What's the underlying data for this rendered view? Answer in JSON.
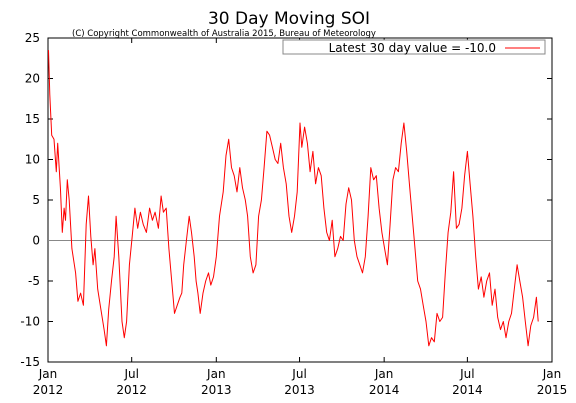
{
  "chart_data": {
    "type": "line",
    "title": "30 Day Moving SOI",
    "subtitle": "(C) Copyright Commonwealth of Australia 2015, Bureau of Meteorology",
    "xlabel": "",
    "ylabel": "",
    "ylim": [
      -15,
      25
    ],
    "yticks": [
      -15,
      -10,
      -5,
      0,
      5,
      10,
      15,
      20,
      25
    ],
    "xlim": [
      "2012-01-01",
      "2015-01-01"
    ],
    "xticks": [
      {
        "date": "2012-01-01",
        "label1": "Jan",
        "label2": "2012"
      },
      {
        "date": "2012-07-01",
        "label1": "Jul",
        "label2": "2012"
      },
      {
        "date": "2013-01-01",
        "label1": "Jan",
        "label2": "2013"
      },
      {
        "date": "2013-07-01",
        "label1": "Jul",
        "label2": "2013"
      },
      {
        "date": "2014-01-01",
        "label1": "Jan",
        "label2": "2014"
      },
      {
        "date": "2014-07-01",
        "label1": "Jul",
        "label2": "2014"
      },
      {
        "date": "2015-01-01",
        "label1": "Jan",
        "label2": "2015"
      }
    ],
    "zero_line": true,
    "legend": {
      "position": "top-right",
      "entries": [
        "Latest 30 day value = -10.0"
      ]
    },
    "series": [
      {
        "name": "Latest 30 day value = -10.0",
        "color": "#ff0000",
        "points": [
          [
            "2012-01-02",
            23.5
          ],
          [
            "2012-01-05",
            18.0
          ],
          [
            "2012-01-09",
            13.0
          ],
          [
            "2012-01-14",
            12.5
          ],
          [
            "2012-01-19",
            8.5
          ],
          [
            "2012-01-22",
            12.0
          ],
          [
            "2012-01-28",
            6.5
          ],
          [
            "2012-02-01",
            1.0
          ],
          [
            "2012-02-05",
            4.0
          ],
          [
            "2012-02-08",
            2.5
          ],
          [
            "2012-02-12",
            7.5
          ],
          [
            "2012-02-16",
            5.0
          ],
          [
            "2012-02-22",
            -1.0
          ],
          [
            "2012-03-01",
            -4.0
          ],
          [
            "2012-03-06",
            -7.5
          ],
          [
            "2012-03-12",
            -6.5
          ],
          [
            "2012-03-18",
            -8.0
          ],
          [
            "2012-03-24",
            2.0
          ],
          [
            "2012-03-29",
            5.5
          ],
          [
            "2012-04-03",
            0.5
          ],
          [
            "2012-04-08",
            -3.0
          ],
          [
            "2012-04-12",
            -1.0
          ],
          [
            "2012-04-18",
            -6.0
          ],
          [
            "2012-04-25",
            -8.5
          ],
          [
            "2012-05-02",
            -11.0
          ],
          [
            "2012-05-07",
            -13.0
          ],
          [
            "2012-05-12",
            -8.5
          ],
          [
            "2012-05-18",
            -5.0
          ],
          [
            "2012-05-24",
            -2.0
          ],
          [
            "2012-05-28",
            3.0
          ],
          [
            "2012-06-03",
            -2.0
          ],
          [
            "2012-06-10",
            -10.0
          ],
          [
            "2012-06-15",
            -12.0
          ],
          [
            "2012-06-20",
            -10.0
          ],
          [
            "2012-06-26",
            -3.0
          ],
          [
            "2012-07-02",
            0.5
          ],
          [
            "2012-07-08",
            4.0
          ],
          [
            "2012-07-14",
            1.5
          ],
          [
            "2012-07-20",
            3.5
          ],
          [
            "2012-07-26",
            2.0
          ],
          [
            "2012-08-02",
            1.0
          ],
          [
            "2012-08-09",
            4.0
          ],
          [
            "2012-08-15",
            2.5
          ],
          [
            "2012-08-21",
            3.5
          ],
          [
            "2012-08-28",
            1.5
          ],
          [
            "2012-09-03",
            5.5
          ],
          [
            "2012-09-08",
            3.5
          ],
          [
            "2012-09-14",
            4.0
          ],
          [
            "2012-09-20",
            -1.0
          ],
          [
            "2012-09-26",
            -5.0
          ],
          [
            "2012-10-02",
            -9.0
          ],
          [
            "2012-10-08",
            -8.0
          ],
          [
            "2012-10-14",
            -7.0
          ],
          [
            "2012-10-18",
            -6.5
          ],
          [
            "2012-10-22",
            -3.0
          ],
          [
            "2012-10-28",
            0.0
          ],
          [
            "2012-11-03",
            3.0
          ],
          [
            "2012-11-08",
            1.0
          ],
          [
            "2012-11-14",
            -2.0
          ],
          [
            "2012-11-18",
            -5.0
          ],
          [
            "2012-11-22",
            -6.5
          ],
          [
            "2012-11-27",
            -9.0
          ],
          [
            "2012-12-03",
            -6.5
          ],
          [
            "2012-12-09",
            -5.0
          ],
          [
            "2012-12-15",
            -4.0
          ],
          [
            "2012-12-20",
            -5.5
          ],
          [
            "2012-12-26",
            -4.5
          ],
          [
            "2013-01-01",
            -2.0
          ],
          [
            "2013-01-08",
            3.0
          ],
          [
            "2013-01-16",
            6.0
          ],
          [
            "2013-01-22",
            10.5
          ],
          [
            "2013-01-28",
            12.5
          ],
          [
            "2013-02-03",
            9.0
          ],
          [
            "2013-02-09",
            8.0
          ],
          [
            "2013-02-15",
            6.0
          ],
          [
            "2013-02-21",
            9.0
          ],
          [
            "2013-02-27",
            6.5
          ],
          [
            "2013-03-05",
            5.0
          ],
          [
            "2013-03-10",
            3.0
          ],
          [
            "2013-03-16",
            -2.0
          ],
          [
            "2013-03-22",
            -4.0
          ],
          [
            "2013-03-28",
            -3.0
          ],
          [
            "2013-04-03",
            3.0
          ],
          [
            "2013-04-09",
            5.0
          ],
          [
            "2013-04-15",
            9.0
          ],
          [
            "2013-04-21",
            13.5
          ],
          [
            "2013-04-27",
            13.0
          ],
          [
            "2013-05-03",
            11.5
          ],
          [
            "2013-05-09",
            10.0
          ],
          [
            "2013-05-15",
            9.5
          ],
          [
            "2013-05-21",
            12.0
          ],
          [
            "2013-05-27",
            9.0
          ],
          [
            "2013-06-02",
            7.0
          ],
          [
            "2013-06-08",
            3.0
          ],
          [
            "2013-06-14",
            1.0
          ],
          [
            "2013-06-20",
            3.0
          ],
          [
            "2013-06-26",
            6.0
          ],
          [
            "2013-07-02",
            14.5
          ],
          [
            "2013-07-06",
            11.5
          ],
          [
            "2013-07-12",
            14.0
          ],
          [
            "2013-07-18",
            12.0
          ],
          [
            "2013-07-24",
            8.5
          ],
          [
            "2013-07-30",
            11.0
          ],
          [
            "2013-08-05",
            7.0
          ],
          [
            "2013-08-11",
            9.0
          ],
          [
            "2013-08-17",
            8.0
          ],
          [
            "2013-08-23",
            4.0
          ],
          [
            "2013-08-29",
            1.0
          ],
          [
            "2013-09-04",
            0.0
          ],
          [
            "2013-09-10",
            2.5
          ],
          [
            "2013-09-16",
            -2.0
          ],
          [
            "2013-09-22",
            -1.0
          ],
          [
            "2013-09-28",
            0.5
          ],
          [
            "2013-10-04",
            0.0
          ],
          [
            "2013-10-10",
            4.5
          ],
          [
            "2013-10-16",
            6.5
          ],
          [
            "2013-10-22",
            5.0
          ],
          [
            "2013-10-28",
            0.0
          ],
          [
            "2013-11-03",
            -2.0
          ],
          [
            "2013-11-09",
            -3.0
          ],
          [
            "2013-11-15",
            -4.0
          ],
          [
            "2013-11-21",
            -2.0
          ],
          [
            "2013-11-27",
            3.0
          ],
          [
            "2013-12-03",
            9.0
          ],
          [
            "2013-12-09",
            7.5
          ],
          [
            "2013-12-15",
            8.0
          ],
          [
            "2013-12-21",
            4.0
          ],
          [
            "2013-12-27",
            1.0
          ],
          [
            "2014-01-02",
            -1.0
          ],
          [
            "2014-01-08",
            -3.0
          ],
          [
            "2014-01-14",
            2.0
          ],
          [
            "2014-01-20",
            7.5
          ],
          [
            "2014-01-26",
            9.0
          ],
          [
            "2014-02-01",
            8.5
          ],
          [
            "2014-02-07",
            12.0
          ],
          [
            "2014-02-13",
            14.5
          ],
          [
            "2014-02-19",
            11.0
          ],
          [
            "2014-02-25",
            7.0
          ],
          [
            "2014-03-03",
            3.0
          ],
          [
            "2014-03-09",
            -1.0
          ],
          [
            "2014-03-15",
            -5.0
          ],
          [
            "2014-03-21",
            -6.0
          ],
          [
            "2014-03-27",
            -8.0
          ],
          [
            "2014-04-02",
            -10.0
          ],
          [
            "2014-04-08",
            -13.0
          ],
          [
            "2014-04-14",
            -12.0
          ],
          [
            "2014-04-20",
            -12.5
          ],
          [
            "2014-04-26",
            -9.0
          ],
          [
            "2014-05-02",
            -10.0
          ],
          [
            "2014-05-08",
            -9.5
          ],
          [
            "2014-05-14",
            -4.0
          ],
          [
            "2014-05-20",
            1.0
          ],
          [
            "2014-05-26",
            3.5
          ],
          [
            "2014-06-01",
            8.5
          ],
          [
            "2014-06-07",
            1.5
          ],
          [
            "2014-06-13",
            2.0
          ],
          [
            "2014-06-19",
            4.0
          ],
          [
            "2014-06-25",
            8.0
          ],
          [
            "2014-07-01",
            11.0
          ],
          [
            "2014-07-07",
            7.0
          ],
          [
            "2014-07-13",
            3.0
          ],
          [
            "2014-07-19",
            -2.0
          ],
          [
            "2014-07-25",
            -6.0
          ],
          [
            "2014-07-31",
            -4.5
          ],
          [
            "2014-08-06",
            -7.0
          ],
          [
            "2014-08-12",
            -5.0
          ],
          [
            "2014-08-18",
            -4.0
          ],
          [
            "2014-08-24",
            -8.0
          ],
          [
            "2014-08-30",
            -6.0
          ],
          [
            "2014-09-05",
            -9.5
          ],
          [
            "2014-09-11",
            -11.0
          ],
          [
            "2014-09-17",
            -10.0
          ],
          [
            "2014-09-23",
            -12.0
          ],
          [
            "2014-09-29",
            -10.0
          ],
          [
            "2014-10-05",
            -9.0
          ],
          [
            "2014-10-11",
            -6.0
          ],
          [
            "2014-10-17",
            -3.0
          ],
          [
            "2014-10-23",
            -5.0
          ],
          [
            "2014-10-29",
            -7.0
          ],
          [
            "2014-11-04",
            -10.0
          ],
          [
            "2014-11-10",
            -13.0
          ],
          [
            "2014-11-16",
            -10.5
          ],
          [
            "2014-11-22",
            -9.5
          ],
          [
            "2014-11-28",
            -7.0
          ],
          [
            "2014-12-02",
            -10.0
          ]
        ]
      }
    ]
  }
}
